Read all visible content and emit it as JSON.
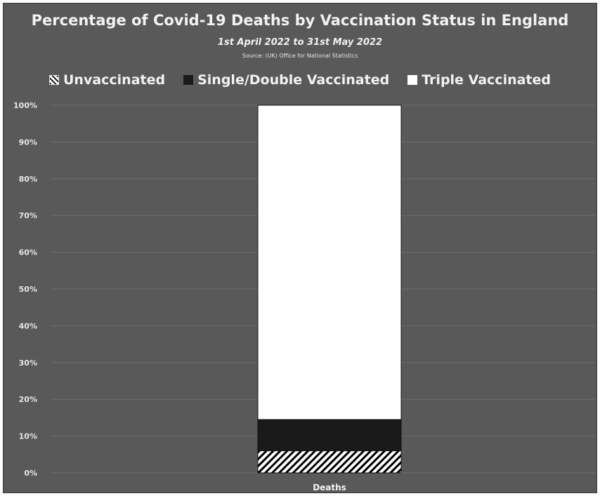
{
  "chart_data": {
    "type": "bar",
    "stacked": true,
    "title": "Percentage of Covid-19 Deaths by Vaccination Status in England",
    "subtitle": "1st April 2022 to 31st May 2022",
    "source": "Source: (UK) Office for National Statistics",
    "categories": [
      "Deaths"
    ],
    "series": [
      {
        "name": "Unvaccinated",
        "values": [
          6
        ],
        "color": "#ffffff",
        "pattern": "hatch"
      },
      {
        "name": "Single/Double Vaccinated",
        "values": [
          8.5
        ],
        "color": "#1a1a1a"
      },
      {
        "name": "Triple Vaccinated",
        "values": [
          85.5
        ],
        "color": "#ffffff"
      }
    ],
    "y_ticks": [
      "0%",
      "10%",
      "20%",
      "30%",
      "40%",
      "50%",
      "60%",
      "70%",
      "80%",
      "90%",
      "100%"
    ],
    "ylim": [
      0,
      100
    ],
    "grid": true,
    "legend_position": "top",
    "background_color": "#595959"
  }
}
